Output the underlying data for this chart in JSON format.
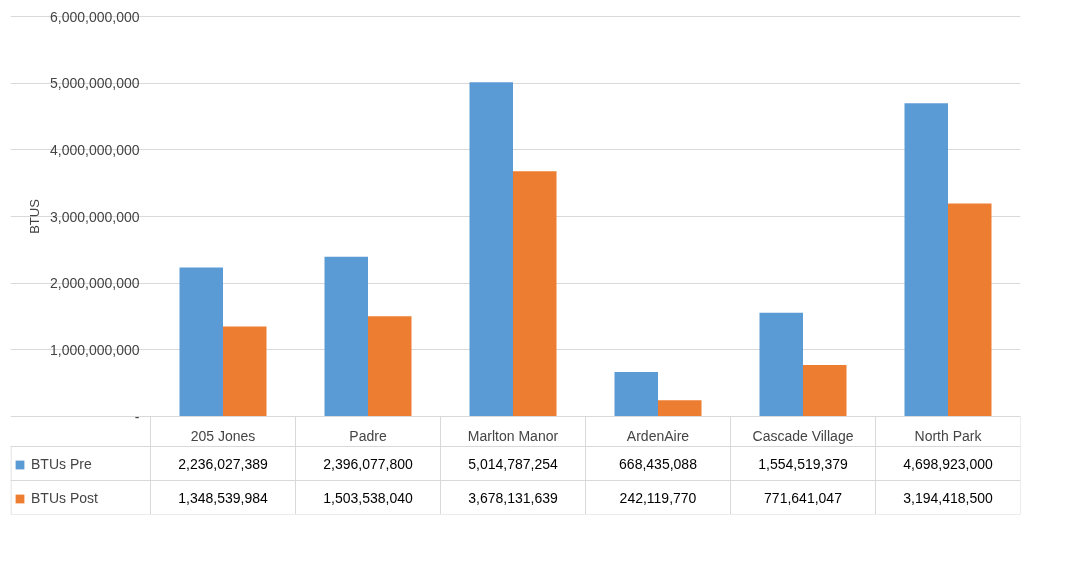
{
  "chart_data": {
    "type": "bar",
    "ylabel": "BTUS",
    "categories": [
      "205 Jones",
      "Padre",
      "Marlton Manor",
      "ArdenAire",
      "Cascade Village",
      "North Park"
    ],
    "series": [
      {
        "name": "BTUs Pre",
        "color": "#5b9bd5",
        "values": [
          2236027389,
          2396077800,
          5014787254,
          668435088,
          1554519379,
          4698923000
        ],
        "value_labels": [
          "2,236,027,389",
          "2,396,077,800",
          "5,014,787,254",
          "668,435,088",
          "1,554,519,379",
          "4,698,923,000"
        ]
      },
      {
        "name": "BTUs Post",
        "color": "#ed7d31",
        "values": [
          1348539984,
          1503538040,
          3678131639,
          242119770,
          771641047,
          3194418500
        ],
        "value_labels": [
          "1,348,539,984",
          "1,503,538,040",
          "3,678,131,639",
          "242,119,770",
          "771,641,047",
          "3,194,418,500"
        ]
      }
    ],
    "ylim": [
      0,
      6000000000
    ],
    "yticks": [
      {
        "value": 0,
        "label": "-"
      },
      {
        "value": 1000000000,
        "label": "1,000,000,000"
      },
      {
        "value": 2000000000,
        "label": "2,000,000,000"
      },
      {
        "value": 3000000000,
        "label": "3,000,000,000"
      },
      {
        "value": 4000000000,
        "label": "4,000,000,000"
      },
      {
        "value": 5000000000,
        "label": "5,000,000,000"
      },
      {
        "value": 6000000000,
        "label": "6,000,000,000"
      }
    ],
    "grid": "y",
    "legend": "bottom"
  }
}
